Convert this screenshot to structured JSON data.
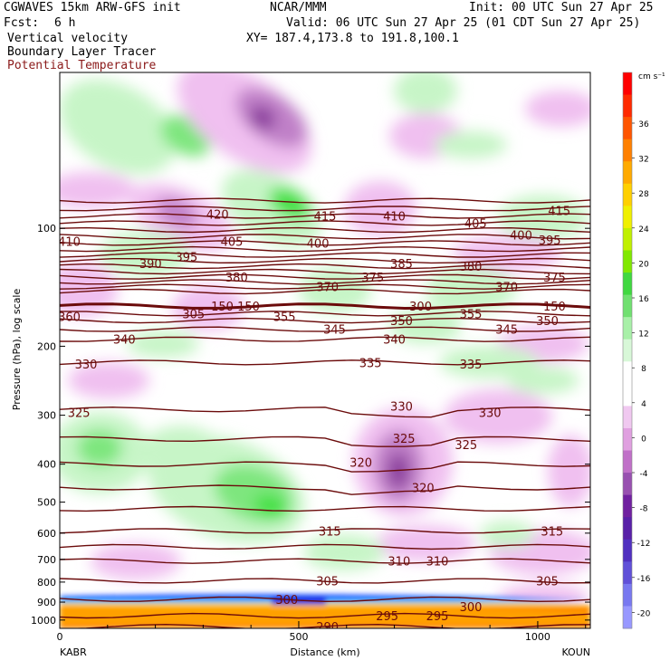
{
  "header": {
    "model": "CGWAVES 15km ARW-GFS init",
    "center": "NCAR/MMM",
    "init": "Init: 00 UTC Sun 27 Apr 25",
    "fcst_label": "Fcst:",
    "fcst_value": "6 h",
    "valid": "Valid: 06 UTC Sun 27 Apr 25 (01 CDT Sun 27 Apr 25)",
    "field1": "Vertical velocity",
    "field2": "Boundary Layer Tracer",
    "field3": "Potential Temperature",
    "xy": "XY= 187.4,173.8 to 191.8,100.1"
  },
  "colors": {
    "theta": "#6b0b0b",
    "field3_text": "#8b1a1a"
  },
  "chart_data": {
    "type": "heatmap",
    "title": "",
    "xlabel": "Distance (km)",
    "ylabel": "Pressure (hPa), log scale",
    "x_range": [
      0,
      1110
    ],
    "y_range_hpa": [
      1050,
      40
    ],
    "y_scale": "log",
    "x_ticks": [
      0,
      500,
      1000
    ],
    "y_ticks": [
      100,
      200,
      300,
      400,
      500,
      600,
      700,
      800,
      900,
      1000
    ],
    "endpoints": {
      "left": "KABR",
      "right": "KOUN"
    },
    "colorbar": {
      "unit": "cm s⁻¹",
      "labels": [
        36,
        32,
        28,
        24,
        20,
        16,
        12,
        8,
        4,
        0,
        -4,
        -8,
        -12,
        -16,
        -20
      ]
    },
    "theta_labels": [
      {
        "t": "420",
        "x": 330,
        "p": 92
      },
      {
        "t": "415",
        "x": 555,
        "p": 93
      },
      {
        "t": "415",
        "x": 1045,
        "p": 90
      },
      {
        "t": "410",
        "x": 20,
        "p": 108
      },
      {
        "t": "410",
        "x": 700,
        "p": 93
      },
      {
        "t": "405",
        "x": 360,
        "p": 108
      },
      {
        "t": "405",
        "x": 870,
        "p": 97
      },
      {
        "t": "400",
        "x": 540,
        "p": 109
      },
      {
        "t": "400",
        "x": 965,
        "p": 104
      },
      {
        "t": "395",
        "x": 1025,
        "p": 107
      },
      {
        "t": "395",
        "x": 265,
        "p": 118
      },
      {
        "t": "390",
        "x": 190,
        "p": 123
      },
      {
        "t": "385",
        "x": 715,
        "p": 123
      },
      {
        "t": "380",
        "x": 370,
        "p": 133
      },
      {
        "t": "380",
        "x": 860,
        "p": 125
      },
      {
        "t": "375",
        "x": 655,
        "p": 133
      },
      {
        "t": "375",
        "x": 1035,
        "p": 133
      },
      {
        "t": "370",
        "x": 560,
        "p": 141
      },
      {
        "t": "370",
        "x": 935,
        "p": 141
      },
      {
        "t": "360",
        "x": 20,
        "p": 168
      },
      {
        "t": "355",
        "x": 470,
        "p": 168
      },
      {
        "t": "355",
        "x": 860,
        "p": 165
      },
      {
        "t": "350",
        "x": 715,
        "p": 172
      },
      {
        "t": "350",
        "x": 1020,
        "p": 172
      },
      {
        "t": "345",
        "x": 575,
        "p": 181
      },
      {
        "t": "345",
        "x": 935,
        "p": 181
      },
      {
        "t": "340",
        "x": 135,
        "p": 192
      },
      {
        "t": "340",
        "x": 700,
        "p": 192
      },
      {
        "t": "335",
        "x": 650,
        "p": 220
      },
      {
        "t": "335",
        "x": 860,
        "p": 222
      },
      {
        "t": "330",
        "x": 55,
        "p": 222
      },
      {
        "t": "330",
        "x": 715,
        "p": 284
      },
      {
        "t": "330",
        "x": 900,
        "p": 295
      },
      {
        "t": "325",
        "x": 40,
        "p": 295
      },
      {
        "t": "325",
        "x": 720,
        "p": 343
      },
      {
        "t": "325",
        "x": 850,
        "p": 356
      },
      {
        "t": "320",
        "x": 630,
        "p": 395
      },
      {
        "t": "320",
        "x": 760,
        "p": 459
      },
      {
        "t": "315",
        "x": 565,
        "p": 592
      },
      {
        "t": "315",
        "x": 1030,
        "p": 592
      },
      {
        "t": "310",
        "x": 710,
        "p": 707
      },
      {
        "t": "310",
        "x": 790,
        "p": 707
      },
      {
        "t": "305",
        "x": 560,
        "p": 794
      },
      {
        "t": "305",
        "x": 1020,
        "p": 794
      },
      {
        "t": "300",
        "x": 475,
        "p": 885
      },
      {
        "t": "300",
        "x": 860,
        "p": 925
      },
      {
        "t": "295",
        "x": 685,
        "p": 975
      },
      {
        "t": "295",
        "x": 790,
        "p": 975
      },
      {
        "t": "290",
        "x": 560,
        "p": 1040
      }
    ],
    "tracer_labels": [
      {
        "t": "305",
        "x": 280,
        "p": 165
      },
      {
        "t": "150",
        "x": 340,
        "p": 158
      },
      {
        "t": "150",
        "x": 395,
        "p": 158
      },
      {
        "t": "300",
        "x": 755,
        "p": 158
      },
      {
        "t": "150",
        "x": 1035,
        "p": 158
      }
    ]
  }
}
